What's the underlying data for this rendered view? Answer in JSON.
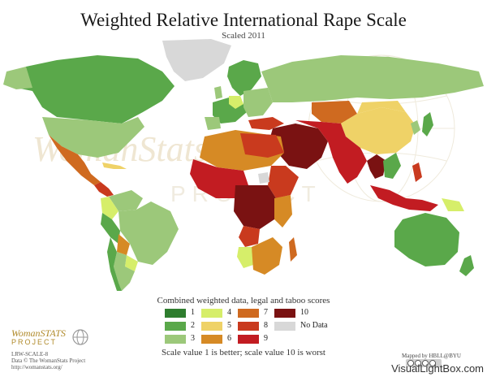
{
  "title": "Weighted Relative International Rape Scale",
  "subtitle": "Scaled 2011",
  "legend": {
    "title": "Combined weighted data, legal and taboo scores",
    "items": [
      {
        "label": "1",
        "color": "#2e7d2e"
      },
      {
        "label": "2",
        "color": "#5aa84a"
      },
      {
        "label": "3",
        "color": "#9cc87a"
      },
      {
        "label": "4",
        "color": "#d6ee6a"
      },
      {
        "label": "5",
        "color": "#efd267"
      },
      {
        "label": "6",
        "color": "#d68a25"
      },
      {
        "label": "7",
        "color": "#cf6a20"
      },
      {
        "label": "8",
        "color": "#c93a1e"
      },
      {
        "label": "9",
        "color": "#c21c22"
      },
      {
        "label": "10",
        "color": "#7a1212"
      },
      {
        "label": "No Data",
        "color": "#d8d8d8"
      }
    ],
    "note": "Scale value 1 is better; scale value 10 is worst"
  },
  "watermark_logo": "WomanStats",
  "watermark_project": "PROJECT",
  "logo": {
    "line1": "WomanSTATS",
    "line2": "PROJECT"
  },
  "meta": {
    "code": "LRW-SCALE-8",
    "data": "Data © The WomanStats Project",
    "url": "http://womanstats.org/"
  },
  "mapped_by": "Mapped by HBLL@BYU",
  "site_watermark": "VisualLightBox.com",
  "icons": [
    "globe-icon",
    "creative-commons-icon"
  ]
}
